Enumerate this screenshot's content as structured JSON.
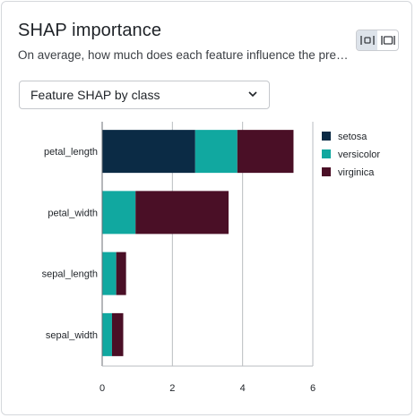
{
  "card": {
    "title": "SHAP importance",
    "subtitle": "On average, how much does each feature influence the predic…"
  },
  "controls": {
    "dropdown_value": "Feature SHAP by class",
    "view_toggle": [
      "fit-width-icon",
      "full-width-icon"
    ]
  },
  "chart_data": {
    "type": "bar",
    "orientation": "horizontal",
    "stacked": true,
    "categories": [
      "petal_length",
      "petal_width",
      "sepal_length",
      "sepal_width"
    ],
    "series": [
      {
        "name": "setosa",
        "color": "#0b2b45",
        "values": [
          2.65,
          0,
          0,
          0
        ]
      },
      {
        "name": "versicolor",
        "color": "#11a8a0",
        "values": [
          1.2,
          0.95,
          0.4,
          0.28
        ]
      },
      {
        "name": "virginica",
        "color": "#4a0f26",
        "values": [
          1.6,
          2.65,
          0.28,
          0.32
        ]
      }
    ],
    "xlim": [
      0,
      6
    ],
    "xticks": [
      0,
      2,
      4,
      6
    ],
    "grid": "vertical",
    "legend": "right"
  }
}
